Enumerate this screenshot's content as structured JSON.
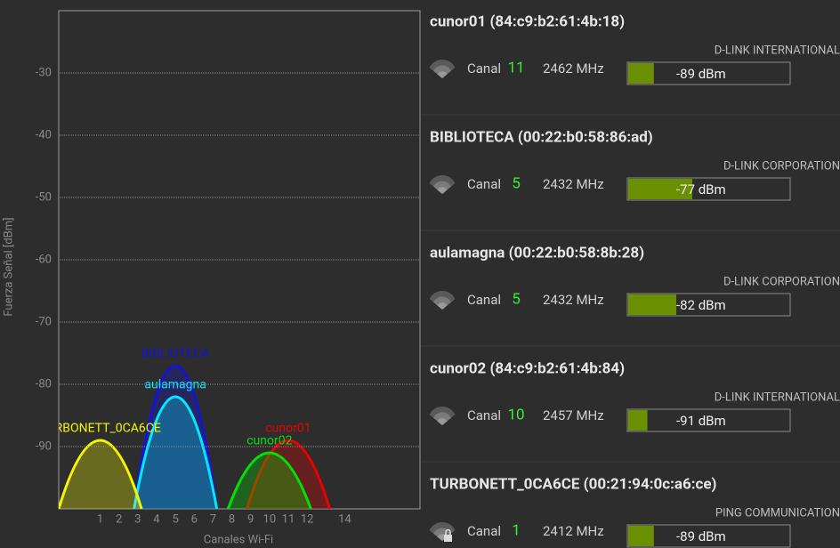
{
  "chart_data": {
    "type": "area",
    "ylabel": "Fuerza Señal [dBm]",
    "xlabel": "Canales Wi-Fi",
    "xlim": [
      -1.2,
      18
    ],
    "ylim": [
      -100,
      -20
    ],
    "xticks": [
      1,
      2,
      3,
      4,
      5,
      6,
      7,
      8,
      9,
      10,
      11,
      12,
      14
    ],
    "yticks": [
      -30,
      -40,
      -50,
      -60,
      -70,
      -80,
      -90
    ],
    "grid": true,
    "series": [
      {
        "name": "cunor01",
        "color": "#e80000",
        "channel": 11,
        "signal": -89
      },
      {
        "name": "BIBLIOTECA",
        "color": "#1414d8",
        "channel": 5,
        "signal": -77
      },
      {
        "name": "aulamagna",
        "color": "#00e8ff",
        "channel": 5,
        "signal": -82
      },
      {
        "name": "cunor02",
        "color": "#00e000",
        "channel": 10,
        "signal": -91
      },
      {
        "name": "TURBONETT_0CA6CE",
        "color": "#f4f400",
        "channel": 1,
        "signal": -89
      }
    ]
  },
  "channel_label": "Canal",
  "networks": [
    {
      "header": "cunor01 (84:c9:b2:61:4b:18)",
      "vendor": "D-LINK INTERNATIONAL",
      "frequency": "2462 MHz",
      "signal_label": "-89 dBm"
    },
    {
      "header": "BIBLIOTECA (00:22:b0:58:86:ad)",
      "vendor": "D-LINK CORPORATION",
      "frequency": "2432 MHz",
      "signal_label": "-77 dBm"
    },
    {
      "header": "aulamagna (00:22:b0:58:8b:28)",
      "vendor": "D-LINK CORPORATION",
      "frequency": "2432 MHz",
      "signal_label": "-82 dBm"
    },
    {
      "header": "cunor02 (84:c9:b2:61:4b:84)",
      "vendor": "D-LINK INTERNATIONAL",
      "frequency": "2457 MHz",
      "signal_label": "-91 dBm"
    },
    {
      "header": "TURBONETT_0CA6CE (00:21:94:0c:a6:ce)",
      "vendor": "PING COMMUNICATION",
      "frequency": "2412 MHz",
      "signal_label": "-89 dBm"
    }
  ]
}
